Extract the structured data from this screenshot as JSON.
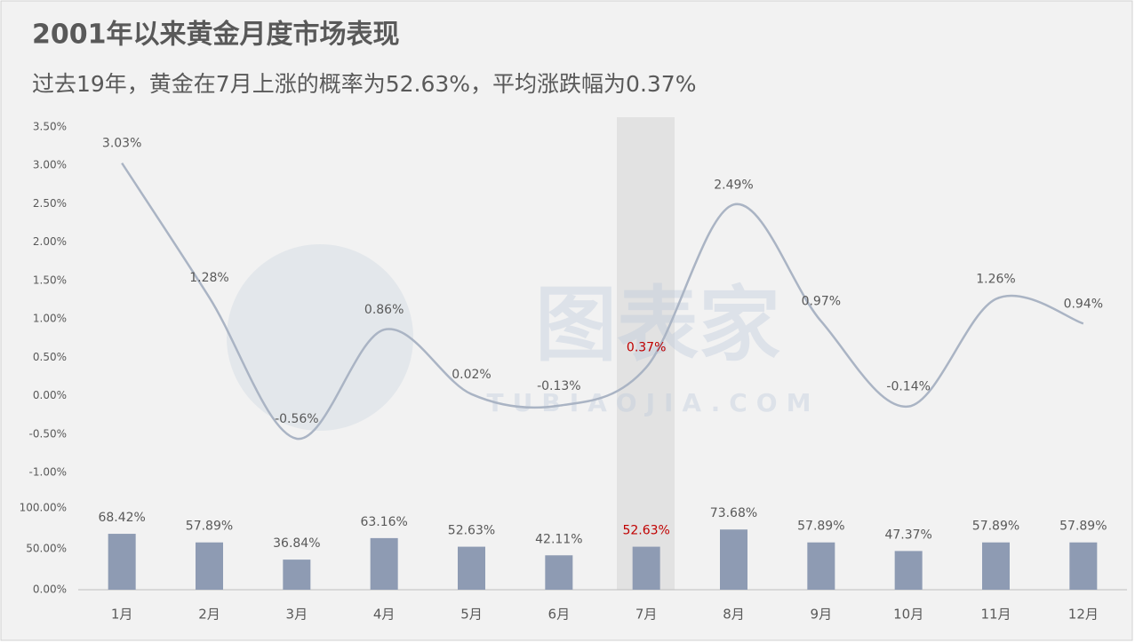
{
  "watermark": {
    "text": "图表家",
    "url": "TUBIAOJIA.COM"
  },
  "chart_data": [
    {
      "type": "line",
      "title": "2001年以来黄金月度市场表现",
      "subtitle": "过去19年，黄金在7月上涨的概率为52.63%，平均涨跌幅为0.37%",
      "categories": [
        "1月",
        "2月",
        "3月",
        "4月",
        "5月",
        "6月",
        "7月",
        "8月",
        "9月",
        "10月",
        "11月",
        "12月"
      ],
      "values": [
        3.03,
        1.28,
        -0.56,
        0.86,
        0.02,
        -0.13,
        0.37,
        2.49,
        0.97,
        -0.14,
        1.26,
        0.94
      ],
      "value_labels": [
        "3.03%",
        "1.28%",
        "-0.56%",
        "0.86%",
        "0.02%",
        "-0.13%",
        "0.37%",
        "2.49%",
        "0.97%",
        "-0.14%",
        "1.26%",
        "0.94%"
      ],
      "color": "#aab4c4",
      "highlight_category": "7月",
      "highlight_color": "#c00000",
      "ylim": [
        -1,
        3.5
      ],
      "yticks": [
        {
          "value": -1,
          "label": "-1.00%"
        },
        {
          "value": -0.5,
          "label": "-0.50%"
        },
        {
          "value": 0,
          "label": "0.00%"
        },
        {
          "value": 0.5,
          "label": "0.50%"
        },
        {
          "value": 1,
          "label": "1.00%"
        },
        {
          "value": 1.5,
          "label": "1.50%"
        },
        {
          "value": 2,
          "label": "2.00%"
        },
        {
          "value": 2.5,
          "label": "2.50%"
        },
        {
          "value": 3,
          "label": "3.00%"
        },
        {
          "value": 3.5,
          "label": "3.50%"
        }
      ]
    },
    {
      "type": "bar",
      "categories": [
        "1月",
        "2月",
        "3月",
        "4月",
        "5月",
        "6月",
        "7月",
        "8月",
        "9月",
        "10月",
        "11月",
        "12月"
      ],
      "values": [
        68.42,
        57.89,
        36.84,
        63.16,
        52.63,
        42.11,
        52.63,
        73.68,
        57.89,
        47.37,
        57.89,
        57.89
      ],
      "value_labels": [
        "68.42%",
        "57.89%",
        "36.84%",
        "63.16%",
        "52.63%",
        "42.11%",
        "52.63%",
        "73.68%",
        "57.89%",
        "47.37%",
        "57.89%",
        "57.89%"
      ],
      "color": "#8e9bb3",
      "highlight_category": "7月",
      "highlight_color": "#c00000",
      "ylim": [
        0,
        100
      ],
      "yticks": [
        {
          "value": 0,
          "label": "0.00%"
        },
        {
          "value": 50,
          "label": "50.00%"
        },
        {
          "value": 100,
          "label": "100.00%"
        }
      ]
    }
  ]
}
